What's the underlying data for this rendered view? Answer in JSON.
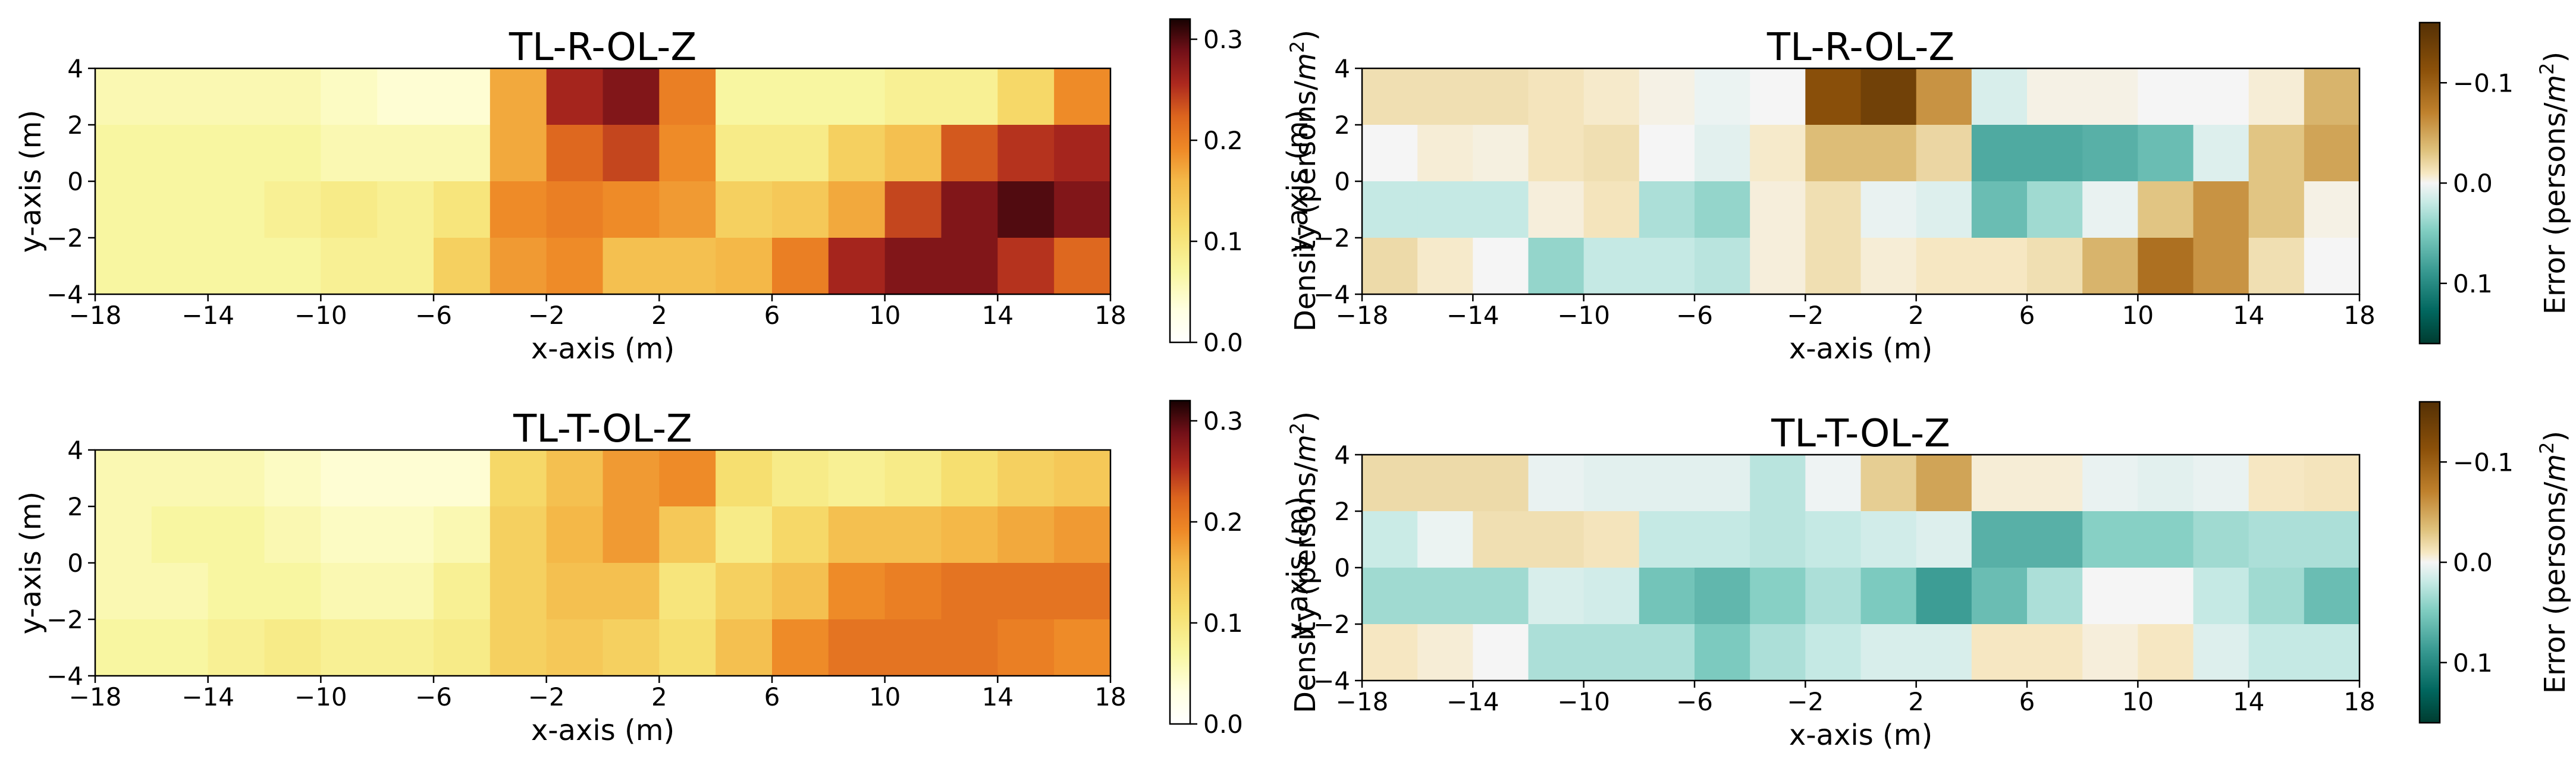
{
  "chart_data": [
    {
      "type": "heatmap",
      "title": "TL-R-OL-Z",
      "xlabel": "x-axis (m)",
      "ylabel": "y-axis (m)",
      "xlim": [
        -18,
        18
      ],
      "ylim": [
        -4,
        4
      ],
      "x_ticks": [
        -18,
        -14,
        -10,
        -6,
        -2,
        2,
        6,
        10,
        14,
        18
      ],
      "y_ticks": [
        -4,
        -2,
        0,
        2,
        4
      ],
      "x_tick_labels": [
        "−18",
        "−14",
        "−10",
        "−6",
        "−2",
        "2",
        "6",
        "10",
        "14",
        "18"
      ],
      "y_tick_labels": [
        "−4",
        "−2",
        "0",
        "2",
        "4"
      ],
      "cell_size": 2,
      "rows_top_to_bottom": [
        [
          0.06,
          0.06,
          0.06,
          0.06,
          0.05,
          0.04,
          0.04,
          0.17,
          0.26,
          0.28,
          0.2,
          0.07,
          0.07,
          0.07,
          0.08,
          0.08,
          0.12,
          0.19
        ],
        [
          0.07,
          0.07,
          0.07,
          0.07,
          0.06,
          0.06,
          0.06,
          0.17,
          0.22,
          0.24,
          0.19,
          0.09,
          0.09,
          0.13,
          0.15,
          0.23,
          0.25,
          0.26
        ],
        [
          0.07,
          0.07,
          0.07,
          0.08,
          0.09,
          0.08,
          0.1,
          0.19,
          0.2,
          0.19,
          0.18,
          0.13,
          0.14,
          0.17,
          0.24,
          0.28,
          0.3,
          0.28
        ],
        [
          0.07,
          0.07,
          0.07,
          0.07,
          0.08,
          0.08,
          0.13,
          0.18,
          0.19,
          0.15,
          0.15,
          0.16,
          0.2,
          0.26,
          0.28,
          0.28,
          0.25,
          0.22
        ]
      ],
      "colorbar": {
        "label": "Density (persons/m²)",
        "label_base": "Density (persons/",
        "label_sup_base": "m",
        "label_sup": "2",
        "label_end": ")",
        "colormap": "afmhot_r",
        "vmin": 0.0,
        "vmax": 0.32,
        "ticks": [
          0.0,
          0.1,
          0.2,
          0.3
        ],
        "tick_labels": [
          "0.0",
          "0.1",
          "0.2",
          "0.3"
        ]
      }
    },
    {
      "type": "heatmap",
      "title": "TL-R-OL-Z",
      "xlabel": "x-axis (m)",
      "ylabel": "y-axis (m)",
      "xlim": [
        -18,
        18
      ],
      "ylim": [
        -4,
        4
      ],
      "x_ticks": [
        -18,
        -14,
        -10,
        -6,
        -2,
        2,
        6,
        10,
        14,
        18
      ],
      "y_ticks": [
        -4,
        -2,
        0,
        2,
        4
      ],
      "x_tick_labels": [
        "−18",
        "−14",
        "−10",
        "−6",
        "−2",
        "2",
        "6",
        "10",
        "14",
        "18"
      ],
      "y_tick_labels": [
        "−4",
        "−2",
        "0",
        "2",
        "4"
      ],
      "cell_size": 2,
      "rows_top_to_bottom": [
        [
          -0.015,
          -0.015,
          -0.015,
          -0.012,
          -0.008,
          -0.003,
          0.004,
          0.0,
          -0.115,
          -0.135,
          -0.06,
          0.012,
          -0.003,
          -0.003,
          0.0,
          0.0,
          -0.006,
          -0.04
        ],
        [
          0.0,
          -0.006,
          -0.004,
          -0.012,
          -0.015,
          0.0,
          0.008,
          -0.008,
          -0.035,
          -0.035,
          -0.02,
          0.075,
          0.075,
          0.07,
          0.06,
          0.01,
          -0.03,
          -0.05
        ],
        [
          0.02,
          0.02,
          0.02,
          -0.005,
          -0.012,
          0.03,
          0.04,
          -0.005,
          -0.015,
          0.005,
          0.01,
          0.06,
          0.035,
          0.005,
          -0.03,
          -0.06,
          -0.03,
          -0.003
        ],
        [
          -0.018,
          -0.008,
          0.0,
          0.04,
          0.02,
          0.02,
          0.025,
          -0.005,
          -0.015,
          -0.006,
          -0.01,
          -0.01,
          -0.015,
          -0.04,
          -0.085,
          -0.06,
          -0.015,
          0.0
        ]
      ],
      "colorbar": {
        "label": "Error (persons/m²)",
        "label_base": "Error (persons/",
        "label_sup_base": "m",
        "label_sup": "2",
        "label_end": ")",
        "colormap": "BrBG_r",
        "vmin": -0.16,
        "vmax": 0.16,
        "inverted": true,
        "ticks": [
          -0.1,
          0.0,
          0.1
        ],
        "tick_labels": [
          "−0.1",
          "0.0",
          "0.1"
        ]
      }
    },
    {
      "type": "heatmap",
      "title": "TL-T-OL-Z",
      "xlabel": "x-axis (m)",
      "ylabel": "y-axis (m)",
      "xlim": [
        -18,
        18
      ],
      "ylim": [
        -4,
        4
      ],
      "x_ticks": [
        -18,
        -14,
        -10,
        -6,
        -2,
        2,
        6,
        10,
        14,
        18
      ],
      "y_ticks": [
        -4,
        -2,
        0,
        2,
        4
      ],
      "x_tick_labels": [
        "−18",
        "−14",
        "−10",
        "−6",
        "−2",
        "2",
        "6",
        "10",
        "14",
        "18"
      ],
      "y_tick_labels": [
        "−4",
        "−2",
        "0",
        "2",
        "4"
      ],
      "cell_size": 2,
      "rows_top_to_bottom": [
        [
          0.06,
          0.06,
          0.06,
          0.05,
          0.04,
          0.04,
          0.04,
          0.12,
          0.15,
          0.18,
          0.19,
          0.11,
          0.09,
          0.08,
          0.09,
          0.11,
          0.13,
          0.14
        ],
        [
          0.06,
          0.07,
          0.07,
          0.06,
          0.05,
          0.05,
          0.06,
          0.13,
          0.16,
          0.18,
          0.14,
          0.09,
          0.12,
          0.15,
          0.15,
          0.16,
          0.17,
          0.18
        ],
        [
          0.06,
          0.06,
          0.07,
          0.07,
          0.06,
          0.06,
          0.08,
          0.13,
          0.15,
          0.15,
          0.1,
          0.13,
          0.15,
          0.19,
          0.2,
          0.21,
          0.21,
          0.21
        ],
        [
          0.07,
          0.07,
          0.08,
          0.09,
          0.08,
          0.08,
          0.09,
          0.13,
          0.14,
          0.13,
          0.11,
          0.15,
          0.19,
          0.21,
          0.21,
          0.21,
          0.2,
          0.19
        ]
      ],
      "colorbar": {
        "label": "Density (persons/m²)",
        "label_base": "Density (persons/",
        "label_sup_base": "m",
        "label_sup": "2",
        "label_end": ")",
        "colormap": "afmhot_r",
        "vmin": 0.0,
        "vmax": 0.32,
        "ticks": [
          0.0,
          0.1,
          0.2,
          0.3
        ],
        "tick_labels": [
          "0.0",
          "0.1",
          "0.2",
          "0.3"
        ]
      }
    },
    {
      "type": "heatmap",
      "title": "TL-T-OL-Z",
      "xlabel": "x-axis (m)",
      "ylabel": "y-axis (m)",
      "xlim": [
        -18,
        18
      ],
      "ylim": [
        -4,
        4
      ],
      "x_ticks": [
        -18,
        -14,
        -10,
        -6,
        -2,
        2,
        6,
        10,
        14,
        18
      ],
      "y_ticks": [
        -4,
        -2,
        0,
        2,
        4
      ],
      "x_tick_labels": [
        "−18",
        "−14",
        "−10",
        "−6",
        "−2",
        "2",
        "6",
        "10",
        "14",
        "18"
      ],
      "y_tick_labels": [
        "−4",
        "−2",
        "0",
        "2",
        "4"
      ],
      "cell_size": 2,
      "rows_top_to_bottom": [
        [
          -0.018,
          -0.018,
          -0.018,
          0.005,
          0.008,
          0.008,
          0.008,
          0.025,
          0.003,
          -0.025,
          -0.05,
          -0.006,
          -0.006,
          0.005,
          0.008,
          0.005,
          -0.01,
          -0.012
        ],
        [
          0.018,
          0.004,
          -0.015,
          -0.015,
          -0.012,
          0.02,
          0.02,
          0.025,
          0.02,
          0.015,
          0.01,
          0.07,
          0.07,
          0.045,
          0.045,
          0.035,
          0.03,
          0.03
        ],
        [
          0.035,
          0.035,
          0.035,
          0.012,
          0.015,
          0.055,
          0.065,
          0.045,
          0.03,
          0.05,
          0.085,
          0.06,
          0.03,
          0.0,
          0.0,
          0.02,
          0.035,
          0.06
        ],
        [
          -0.01,
          -0.006,
          0.0,
          0.03,
          0.03,
          0.03,
          0.05,
          0.03,
          0.02,
          0.012,
          0.012,
          -0.01,
          -0.01,
          -0.005,
          -0.01,
          0.01,
          0.02,
          0.02
        ]
      ],
      "colorbar": {
        "label": "Error (persons/m²)",
        "label_base": "Error (persons/",
        "label_sup_base": "m",
        "label_sup": "2",
        "label_end": ")",
        "colormap": "BrBG_r",
        "vmin": -0.16,
        "vmax": 0.16,
        "inverted": true,
        "ticks": [
          -0.1,
          0.0,
          0.1
        ],
        "tick_labels": [
          "−0.1",
          "0.0",
          "0.1"
        ]
      }
    }
  ]
}
